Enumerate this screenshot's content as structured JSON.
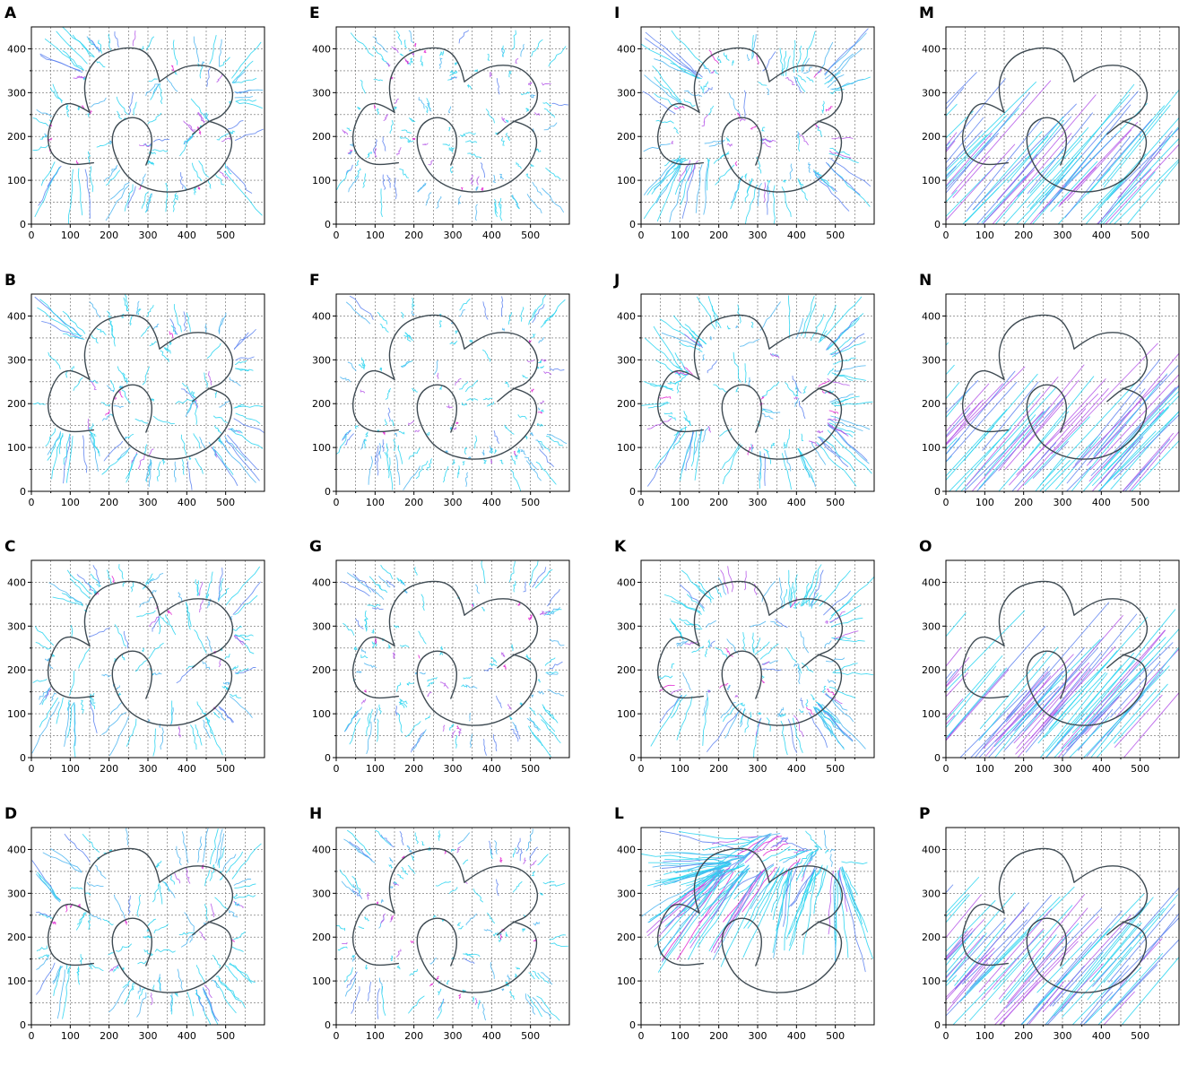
{
  "chart_data": {
    "type": "line",
    "layout": {
      "rows": 4,
      "cols": 4,
      "order": "column-major"
    },
    "panels": [
      {
        "label": "A",
        "style": "radial",
        "core_color": "#d010e0"
      },
      {
        "label": "B",
        "style": "radial",
        "core_color": "#d010e0"
      },
      {
        "label": "C",
        "style": "radial",
        "core_color": "#d010e0"
      },
      {
        "label": "D",
        "style": "radial",
        "core_color": "#d010e0"
      },
      {
        "label": "E",
        "style": "radial-sparse",
        "core_color": "#7a5cf0"
      },
      {
        "label": "F",
        "style": "radial-sparse",
        "core_color": "#7a5cf0"
      },
      {
        "label": "G",
        "style": "radial-sparse",
        "core_color": "#7a5cf0"
      },
      {
        "label": "H",
        "style": "radial-sparse",
        "core_color": "#7a5cf0"
      },
      {
        "label": "I",
        "style": "bundled",
        "core_color": "#5a80f0"
      },
      {
        "label": "J",
        "style": "bundled",
        "core_color": "#5a80f0"
      },
      {
        "label": "K",
        "style": "bundled",
        "core_color": "#5a80f0"
      },
      {
        "label": "L",
        "style": "drift",
        "core_color": "#5a80f0"
      },
      {
        "label": "M",
        "style": "diagonal",
        "core_color": "#c030e8"
      },
      {
        "label": "N",
        "style": "diagonal",
        "core_color": "#c030e8"
      },
      {
        "label": "O",
        "style": "diagonal",
        "core_color": "#c030e8"
      },
      {
        "label": "P",
        "style": "diagonal",
        "core_color": "#c030e8"
      }
    ],
    "x_ticks": [
      0,
      100,
      200,
      300,
      400,
      500
    ],
    "y_ticks": [
      0,
      100,
      200,
      300,
      400
    ],
    "xlim": [
      0,
      600
    ],
    "ylim": [
      0,
      450
    ],
    "grid": true,
    "reference_curves": [
      [
        [
          150,
          255
        ],
        [
          115,
          275
        ],
        [
          80,
          275
        ],
        [
          55,
          245
        ],
        [
          40,
          200
        ],
        [
          50,
          160
        ],
        [
          80,
          140
        ],
        [
          110,
          135
        ],
        [
          160,
          140
        ]
      ],
      [
        [
          150,
          255
        ],
        [
          135,
          290
        ],
        [
          140,
          345
        ],
        [
          180,
          390
        ],
        [
          250,
          405
        ],
        [
          295,
          395
        ],
        [
          320,
          360
        ],
        [
          330,
          325
        ]
      ],
      [
        [
          330,
          325
        ],
        [
          375,
          355
        ],
        [
          430,
          365
        ],
        [
          480,
          355
        ],
        [
          515,
          320
        ],
        [
          520,
          280
        ],
        [
          490,
          245
        ],
        [
          455,
          235
        ],
        [
          415,
          205
        ]
      ],
      [
        [
          455,
          235
        ],
        [
          500,
          225
        ],
        [
          520,
          190
        ],
        [
          505,
          145
        ],
        [
          465,
          105
        ],
        [
          420,
          82
        ],
        [
          370,
          72
        ],
        [
          310,
          76
        ],
        [
          255,
          100
        ],
        [
          225,
          135
        ],
        [
          205,
          185
        ],
        [
          215,
          225
        ],
        [
          250,
          245
        ],
        [
          285,
          240
        ],
        [
          310,
          210
        ],
        [
          310,
          170
        ],
        [
          295,
          135
        ]
      ]
    ],
    "trajectory_colors": [
      "#26d4f0",
      "#4ab4f0",
      "#5a80f0",
      "#b455e8",
      "#e020d0"
    ]
  }
}
